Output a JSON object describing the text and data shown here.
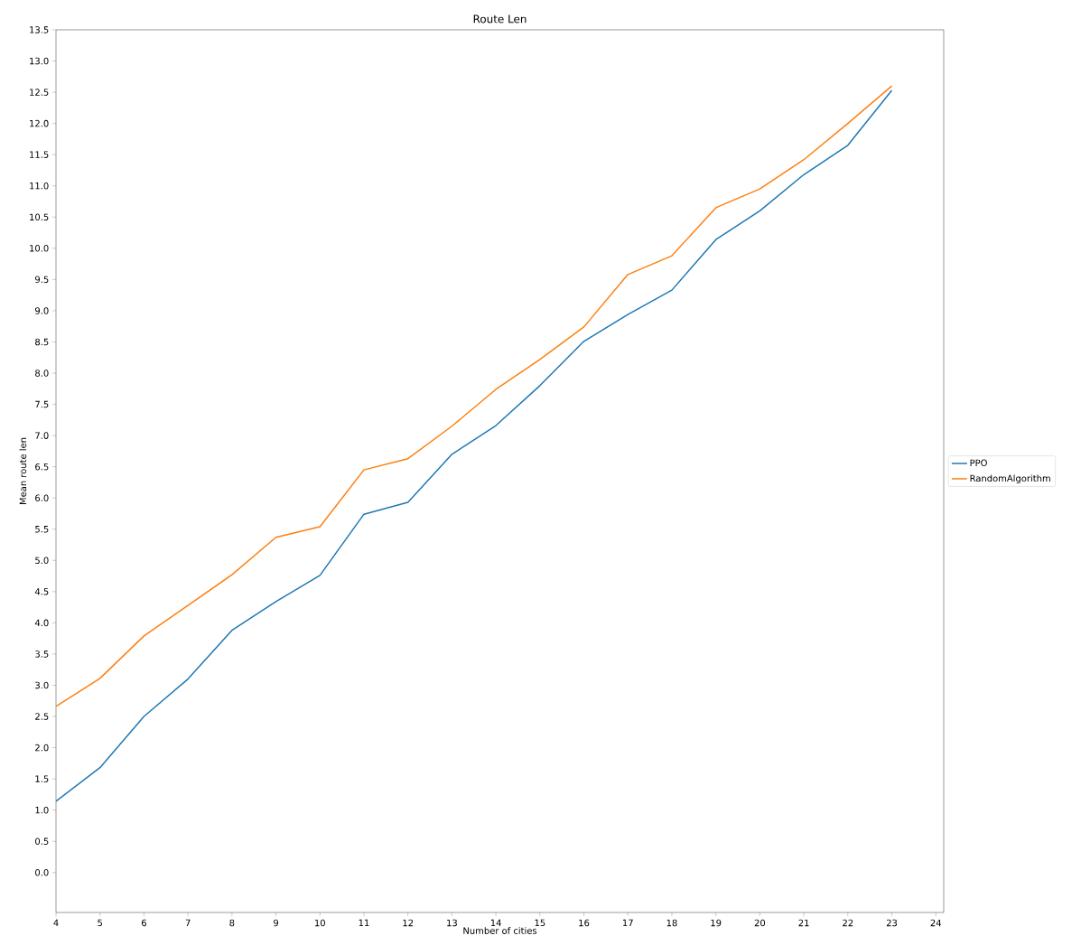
{
  "chart_data": {
    "type": "line",
    "title": "Route Len",
    "xlabel": "Number of cities",
    "ylabel": "Mean route len",
    "x": [
      4,
      5,
      6,
      7,
      8,
      9,
      10,
      11,
      12,
      13,
      14,
      15,
      16,
      17,
      18,
      19,
      20,
      21,
      22,
      23
    ],
    "series": [
      {
        "name": "PPO",
        "color": "#1f77b4",
        "values": [
          1.14,
          1.68,
          2.5,
          3.1,
          3.88,
          4.34,
          4.76,
          5.74,
          5.93,
          6.7,
          7.16,
          7.8,
          8.51,
          8.94,
          9.33,
          10.14,
          10.6,
          11.18,
          11.65,
          12.53
        ]
      },
      {
        "name": "RandomAlgorithm",
        "color": "#ff7f0e",
        "values": [
          2.66,
          3.11,
          3.79,
          4.28,
          4.77,
          5.37,
          5.54,
          6.45,
          6.63,
          7.15,
          7.74,
          8.22,
          8.74,
          9.58,
          9.88,
          10.65,
          10.95,
          11.42,
          12.0,
          12.6
        ]
      }
    ],
    "xlim": [
      4,
      24.18
    ],
    "ylim": [
      -0.64,
      13.5
    ],
    "xticks": [
      4,
      5,
      6,
      7,
      8,
      9,
      10,
      11,
      12,
      13,
      14,
      15,
      16,
      17,
      18,
      19,
      20,
      21,
      22,
      23,
      24
    ],
    "yticks": [
      {
        "value": 0,
        "label": "0.0"
      },
      {
        "value": 0.5,
        "label": "0.5"
      },
      {
        "value": 1,
        "label": "1.0"
      },
      {
        "value": 1.5,
        "label": "1.5"
      },
      {
        "value": 2,
        "label": "2.0"
      },
      {
        "value": 2.5,
        "label": "2.5"
      },
      {
        "value": 3,
        "label": "3.0"
      },
      {
        "value": 3.5,
        "label": "3.5"
      },
      {
        "value": 4,
        "label": "4.0"
      },
      {
        "value": 4.5,
        "label": "4.5"
      },
      {
        "value": 5,
        "label": "5.0"
      },
      {
        "value": 5.5,
        "label": "5.5"
      },
      {
        "value": 6,
        "label": "6.0"
      },
      {
        "value": 6.5,
        "label": "6.5"
      },
      {
        "value": 7,
        "label": "7.0"
      },
      {
        "value": 7.5,
        "label": "7.5"
      },
      {
        "value": 8,
        "label": "8.0"
      },
      {
        "value": 8.5,
        "label": "8.5"
      },
      {
        "value": 9,
        "label": "9.0"
      },
      {
        "value": 9.5,
        "label": "9.5"
      },
      {
        "value": 10,
        "label": "10.0"
      },
      {
        "value": 10.5,
        "label": "10.5"
      },
      {
        "value": 11,
        "label": "11.0"
      },
      {
        "value": 11.5,
        "label": "11.5"
      },
      {
        "value": 12,
        "label": "12.0"
      },
      {
        "value": 12.5,
        "label": "12.5"
      },
      {
        "value": 13,
        "label": "13.0"
      },
      {
        "value": 13.5,
        "label": "13.5"
      }
    ],
    "legend": "right",
    "grid": false,
    "marker": "none",
    "line_style": "solid"
  }
}
